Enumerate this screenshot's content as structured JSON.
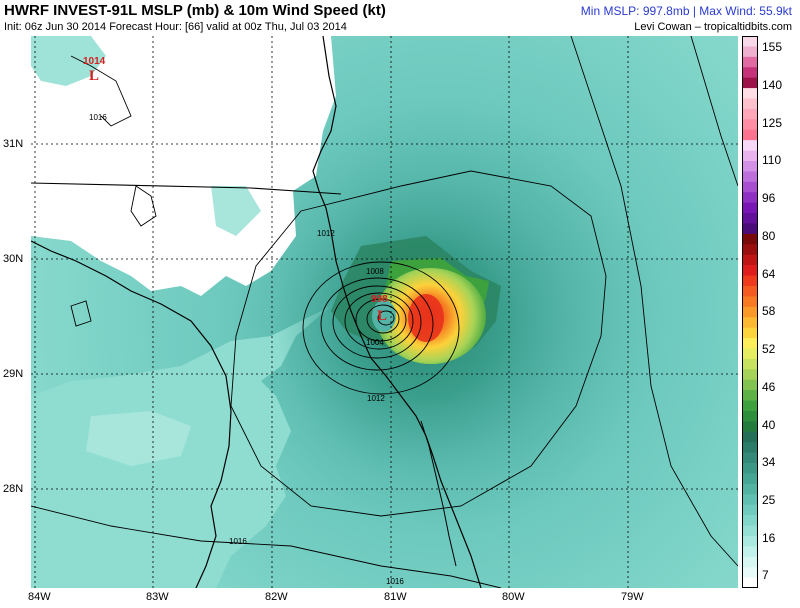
{
  "header": {
    "title": "HWRF INVEST-91L MSLP (mb) & 10m Wind Speed (kt)",
    "subtitle": "Init: 06z Jun 30 2014 Forecast Hour: [66] valid at 00z Thu, Jul 03 2014",
    "stats": "Min MSLP: 997.8mb | Max Wind: 55.9kt",
    "credit": "Levi Cowan – tropicaltidbits.com"
  },
  "map": {
    "lat_labels": [
      "31N",
      "30N",
      "29N",
      "28N"
    ],
    "lon_labels": [
      "84W",
      "83W",
      "82W",
      "81W",
      "80W",
      "79W"
    ],
    "pressure_centers": [
      {
        "value": "1014",
        "symbol": "L"
      },
      {
        "value": "998",
        "symbol": "L"
      }
    ],
    "isobar_labels": [
      "1016",
      "1012",
      "1008",
      "1004",
      "1012",
      "1016",
      "1016"
    ]
  },
  "colorbar": {
    "ticks": [
      "155",
      "140",
      "125",
      "110",
      "96",
      "80",
      "64",
      "58",
      "52",
      "46",
      "40",
      "34",
      "25",
      "16",
      "7"
    ],
    "colors": [
      "#f7d8e8",
      "#efb0d0",
      "#e26aa3",
      "#c7337b",
      "#9d1248",
      "#ffdfe5",
      "#ffc2cd",
      "#ffa7b8",
      "#ff8da3",
      "#fb738f",
      "#f7d9f7",
      "#e9b4ee",
      "#d391e6",
      "#bd6fdc",
      "#a84fd1",
      "#8f30c4",
      "#7a16b5",
      "#62119a",
      "#4b0d7a",
      "#7a0a0a",
      "#9a0f0f",
      "#c01515",
      "#e01d1d",
      "#f03a1e",
      "#f55a20",
      "#f77a22",
      "#f99a28",
      "#fbb830",
      "#fdd43c",
      "#fbee5a",
      "#e5ee60",
      "#c7e25e",
      "#a6d357",
      "#82c24e",
      "#5eb245",
      "#3da23e",
      "#2d8f3c",
      "#237c3c",
      "#246f58",
      "#2b7c68",
      "#338a78",
      "#3c9886",
      "#46a695",
      "#52b3a3",
      "#5fbfb0",
      "#6ecbbd",
      "#80d6c9",
      "#94e0d5",
      "#a9e9e0",
      "#c0f1ea",
      "#d6f7f2",
      "#e8fbf8",
      "#ffffff"
    ]
  }
}
